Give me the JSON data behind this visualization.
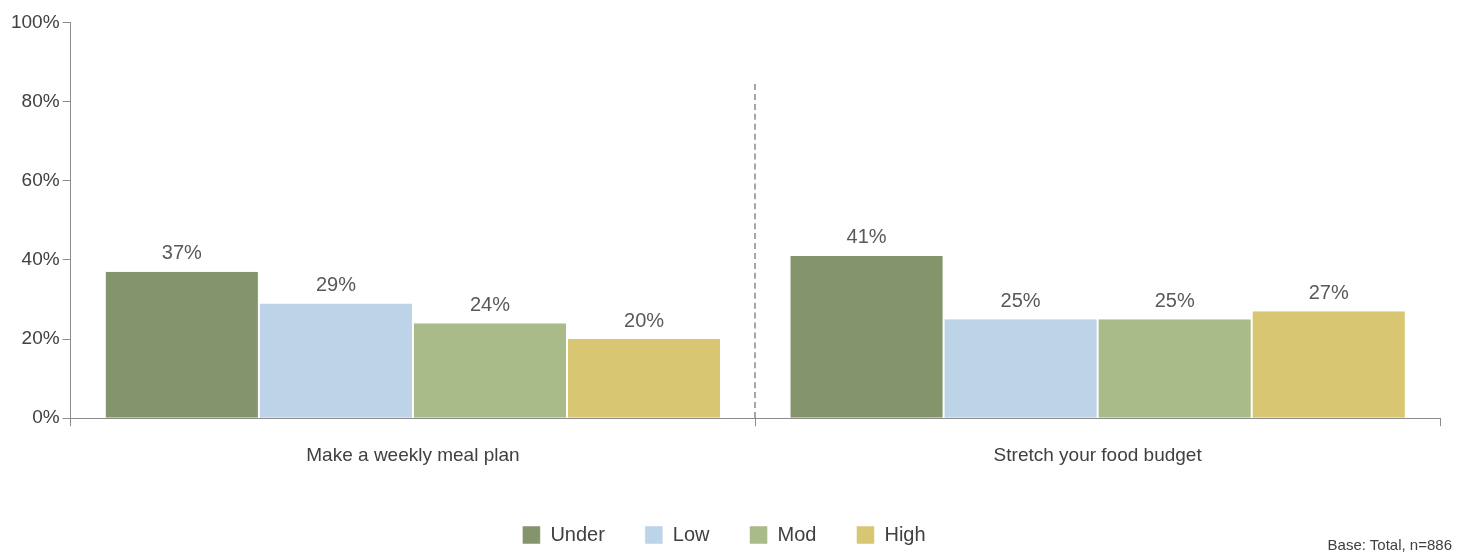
{
  "chart_data": {
    "type": "bar",
    "categories": [
      "Make a weekly meal plan",
      "Stretch your food budget"
    ],
    "series": [
      {
        "name": "Under",
        "color": "#84956c",
        "values": [
          37,
          41
        ],
        "value_labels": [
          "37%",
          "41%"
        ]
      },
      {
        "name": "Low",
        "color": "#bcd3e8",
        "values": [
          29,
          25
        ],
        "value_labels": [
          "29%",
          "25%"
        ]
      },
      {
        "name": "Mod",
        "color": "#a9bb88",
        "values": [
          24,
          25
        ],
        "value_labels": [
          "24%",
          "25%"
        ]
      },
      {
        "name": "High",
        "color": "#d9c672",
        "values": [
          20,
          27
        ],
        "value_labels": [
          "20%",
          "27%"
        ]
      }
    ],
    "ylim": [
      0,
      100
    ],
    "yticks": [
      {
        "value": 0,
        "label": "0%"
      },
      {
        "value": 20,
        "label": "20%"
      },
      {
        "value": 40,
        "label": "40%"
      },
      {
        "value": 60,
        "label": "60%"
      },
      {
        "value": 80,
        "label": "80%"
      },
      {
        "value": 100,
        "label": "100%"
      }
    ],
    "grid": false,
    "legend": "bottom",
    "annotations": [
      "Base: Total, n=886"
    ]
  }
}
